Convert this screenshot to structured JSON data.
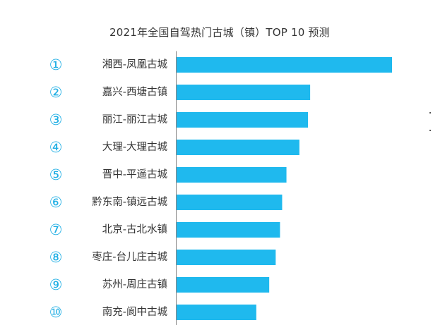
{
  "chart_data": {
    "type": "bar",
    "orientation": "horizontal",
    "title": "2021年全国自驾热门古城（镇）TOP 10 预测",
    "ranks": [
      "①",
      "②",
      "③",
      "④",
      "⑤",
      "⑥",
      "⑦",
      "⑧",
      "⑨",
      "⑩"
    ],
    "categories": [
      "湘西-凤凰古城",
      "嘉兴-西塘古镇",
      "丽江-丽江古城",
      "大理-大理古城",
      "晋中-平遥古城",
      "黔东南-镇远古城",
      "北京-古北水镇",
      "枣庄-台儿庄古城",
      "苏州-周庄古镇",
      "南充-阆中古城"
    ],
    "values": [
      100,
      62,
      61,
      57,
      51,
      49,
      48,
      46,
      43,
      37
    ],
    "xlim": [
      0,
      100
    ],
    "grid": false,
    "legend": "none",
    "colors": {
      "bar": "#1FB9EE",
      "rank": "#1EAEE4",
      "label": "#333333",
      "axis": "#888888"
    }
  }
}
